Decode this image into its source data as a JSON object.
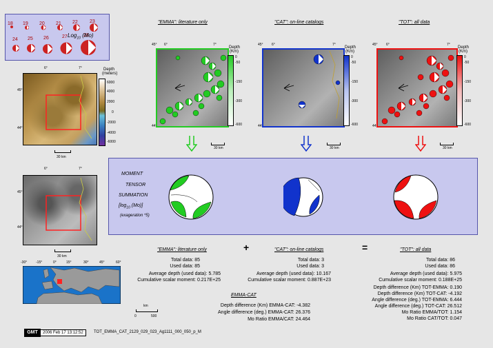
{
  "legend": {
    "row1": [
      "18",
      "19",
      "20",
      "21",
      "22",
      "23"
    ],
    "row2": [
      "24",
      "25",
      "26",
      "27",
      "28"
    ],
    "label_main": "Log",
    "label_sub": "10",
    "label_unit": "(Mo)"
  },
  "maps": {
    "emma_title": "\"EMMA\": literature only",
    "cat_title": "\"CAT\": on-line catalogs",
    "tot_title": "\"TOT\": all data",
    "lon_w": "6°",
    "lon_e": "7°",
    "lat_n": "45°",
    "lat_s": "44°",
    "depth_label": "Depth",
    "depth_unit": "(Km)",
    "depth_ticks": [
      "0",
      "-50",
      "-150",
      "-300",
      "-600"
    ],
    "scale": "30 km"
  },
  "topo": {
    "depth_label": "Depth",
    "depth_unit": "(meters)",
    "ticks": [
      "6000",
      "4000",
      "2000",
      "0",
      "-2000",
      "-4000",
      "-6000"
    ],
    "lon_w": "6°",
    "lon_e": "7°",
    "lat_n": "45°",
    "lat_s": "44°",
    "scale": "30 km"
  },
  "world": {
    "lons": [
      "-30°",
      "-15°",
      "0°",
      "15°",
      "30°",
      "45°",
      "60°"
    ],
    "scale_unit": "km",
    "scale_0": "0",
    "scale_500": "500"
  },
  "summation": {
    "line1": "MOMENT",
    "line2": "TENSOR",
    "line3": "SUMMATION",
    "line4": "[log",
    "line4_sub": "10",
    "line4_end": " (Mo)]",
    "line5": "(exageration *5)"
  },
  "stats": {
    "plus": "+",
    "equals": "=",
    "emma": {
      "title": "\"EMMA\": literature only",
      "total": "Total data:   85",
      "used": "Used data:   85",
      "avg": "Average depth (used data):   5.785",
      "moment": "Cumulative scalar moment: 0.217E+25"
    },
    "cat": {
      "title": "\"CAT\": on-line catalogs",
      "total": "Total data:   3",
      "used": "Used data:   3",
      "avg": "Average depth (used data):   10.167",
      "moment": "Cumulative scalar moment: 0.887E+23"
    },
    "tot": {
      "title": "\"TOT\": all data",
      "total": "Total data:   86",
      "used": "Used data:   86",
      "avg": "Average depth (used data):   5.975",
      "moment": "Cumulative scalar moment: 0.188E+25",
      "d1": "Depth difference (Km) TOT-EMMA:   0.190",
      "d2": "Depth difference (Km) TOT-CAT:   -4.192",
      "d3": "Angle difference (deg.) TOT-EMMA:   6.444",
      "d4": "Angle difference (deg.) TOT-CAT:   26.512",
      "d5": "Mo Ratio EMMA/TOT:   1.154",
      "d6": "Mo Ratio CAT/TOT:   0.047"
    },
    "ec": {
      "title": "EMMA-CAT",
      "d1": "Depth difference (Km) EMMA-CAT:   -4.382",
      "d2": "Angle difference (deg.) EMMA-CAT:   26.376",
      "d3": "Mo Ratio EMMA/CAT:   24.464"
    }
  },
  "footer": {
    "logo": "GMT",
    "date": "2006 Feb 17 13:12:52",
    "file": "TOT_EMMA_CAT_2129_029_023_Ag1111_000_050_p_M"
  },
  "colors": {
    "emma": "#22cc22",
    "cat": "#1133cc",
    "tot": "#ee1111",
    "legend_beach": "#cc2222",
    "frame": "#ff0000",
    "panel_bg": "#c8c8ee"
  }
}
